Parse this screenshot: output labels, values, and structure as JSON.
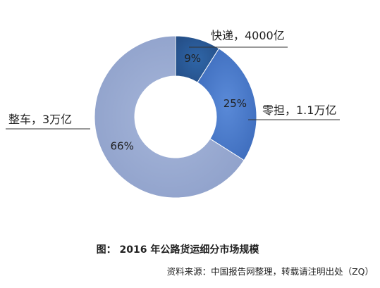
{
  "chart_data": {
    "type": "pie",
    "variant": "donut",
    "title": "图： 2016 年公路货运细分市场规模",
    "source": "资料来源：中国报告网整理，转载请注明出处（ZQ）",
    "slices": [
      {
        "name": "快递",
        "value_text": "4000亿",
        "percent": 9,
        "percent_label": "9%",
        "callout": "快递，4000亿",
        "color": "#2b5c9a"
      },
      {
        "name": "零担",
        "value_text": "1.1万亿",
        "percent": 25,
        "percent_label": "25%",
        "callout": "零担，1.1万亿",
        "color": "#4d7ccd"
      },
      {
        "name": "整车",
        "value_text": "3万亿",
        "percent": 66,
        "percent_label": "66%",
        "callout": "整车，3万亿",
        "color": "#9dadd3"
      }
    ],
    "legend": "none"
  }
}
